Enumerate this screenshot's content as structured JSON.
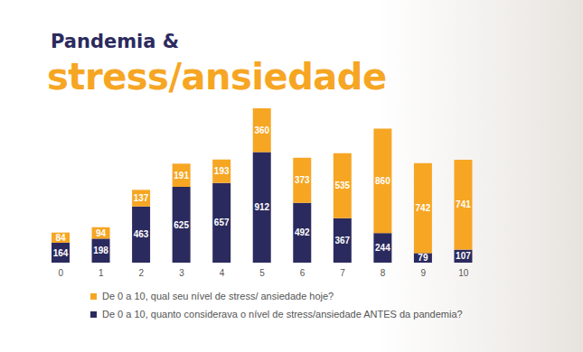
{
  "chart_data": {
    "type": "bar",
    "title": "Pandemia &",
    "subtitle": "stress/ansiedade",
    "categories": [
      "0",
      "1",
      "2",
      "3",
      "4",
      "5",
      "6",
      "7",
      "8",
      "9",
      "10"
    ],
    "series": [
      {
        "name": "De 0 a 10, qual seu nível de stress/ ansiedade hoje?",
        "color": "#f6a623",
        "values": [
          84,
          94,
          137,
          191,
          193,
          360,
          373,
          535,
          860,
          742,
          741
        ]
      },
      {
        "name": "De 0 a 10, quanto considerava o nível de stress/ansiedade ANTES da pandemia?",
        "color": "#2b2a5e",
        "values": [
          164,
          198,
          463,
          625,
          657,
          912,
          492,
          367,
          244,
          79,
          107
        ]
      }
    ],
    "stacked": true,
    "data_labels": true,
    "tick_labels": "x",
    "legend": "bottom"
  }
}
